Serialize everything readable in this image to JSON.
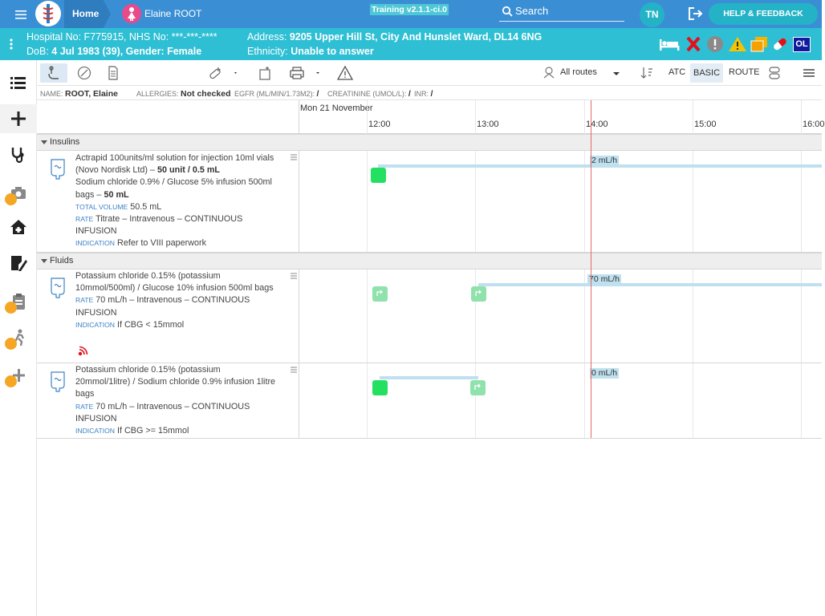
{
  "header": {
    "home_label": "Home",
    "patient_name": "Elaine ROOT",
    "version": "Training v2.1.1-ci.0",
    "search_label": "Search",
    "user_initials": "TN",
    "help_label": "HELP & FEEDBACK"
  },
  "banner": {
    "hospital_line": "Hospital No: F775915, NHS No: ***-***-****",
    "dob_prefix": "DoB: ",
    "dob_value": "4 Jul 1983 (39), Gender: Female",
    "address_prefix": "Address: ",
    "address_value": "9205 Upper Hill St, City And Hunslet Ward, DL14 6NG",
    "ethnicity_prefix": "Ethnicity: ",
    "ethnicity_value": "Unable to answer",
    "ol_badge": "OL",
    "status_icons": [
      "bed-icon",
      "cross-icon",
      "alert-circle-icon",
      "warning-triangle-icon",
      "copy-icon",
      "pill-icon"
    ]
  },
  "sidenav": {
    "items": [
      "list-icon",
      "plus-icon",
      "stethoscope-icon",
      "camera-icon",
      "home-icon",
      "edit-icon",
      "clipboard-icon",
      "running-icon",
      "add-icon"
    ]
  },
  "toolbar": {
    "routes_label": "All routes",
    "atc_label": "ATC",
    "basic_label": "BASIC",
    "route_label": "ROUTE",
    "icons": [
      "hand-icon",
      "compass-icon",
      "document-icon",
      "prescribe-icon",
      "refill-icon",
      "print-icon",
      "warning-icon",
      "route-icon",
      "sort-icon",
      "capsule-icon",
      "hamburger-icon"
    ]
  },
  "infobar": {
    "name_label": "NAME:",
    "name_value": "ROOT, Elaine",
    "allergies_label": "ALLERGIES:",
    "allergies_value": "Not checked",
    "egfr_label": "EGFR (ML/MIN/1.73M2):",
    "egfr_value": "/",
    "creat_label": "CREATININE (UMOL/L):",
    "creat_value": "/",
    "inr_label": "INR:",
    "inr_value": "/"
  },
  "timeline": {
    "date": "Mon 21 November",
    "hours": [
      "12:00",
      "13:00",
      "14:00",
      "15:00",
      "16:00"
    ]
  },
  "sections": [
    {
      "title": "Insulins"
    },
    {
      "title": "Fluids"
    }
  ],
  "meds": [
    {
      "line1": "Actrapid 100units/ml solution for injection 10ml vials (Novo Nordisk Ltd)",
      "dose1": "50 unit / 0.5 mL",
      "line2": "Sodium chloride 0.9% / Glucose 5% infusion 500ml bags",
      "dose2": "50 mL",
      "total_label": "TOTAL VOLUME",
      "total_value": "50.5 mL",
      "rate_label": "RATE",
      "rate_value": "Titrate – Intravenous – CONTINUOUS INFUSION",
      "ind_label": "INDICATION",
      "ind_value": "Refer to VIII paperwork",
      "chart_rate": "2 mL/h"
    },
    {
      "line1": "Potassium chloride 0.15% (potassium 10mmol/500ml) / Glucose 10% infusion 500ml bags",
      "rate_label": "RATE",
      "rate_value": "70 mL/h – Intravenous – CONTINUOUS INFUSION",
      "ind_label": "INDICATION",
      "ind_value": "If CBG < 15mmol",
      "chart_rate": "70 mL/h"
    },
    {
      "line1": "Potassium chloride 0.15% (potassium 20mmol/1litre) / Sodium chloride 0.9% infusion 1litre bags",
      "rate_label": "RATE",
      "rate_value": "70 mL/h – Intravenous – CONTINUOUS INFUSION",
      "ind_label": "INDICATION",
      "ind_value": "If CBG >= 15mmol",
      "chart_rate": "0 mL/h"
    }
  ]
}
